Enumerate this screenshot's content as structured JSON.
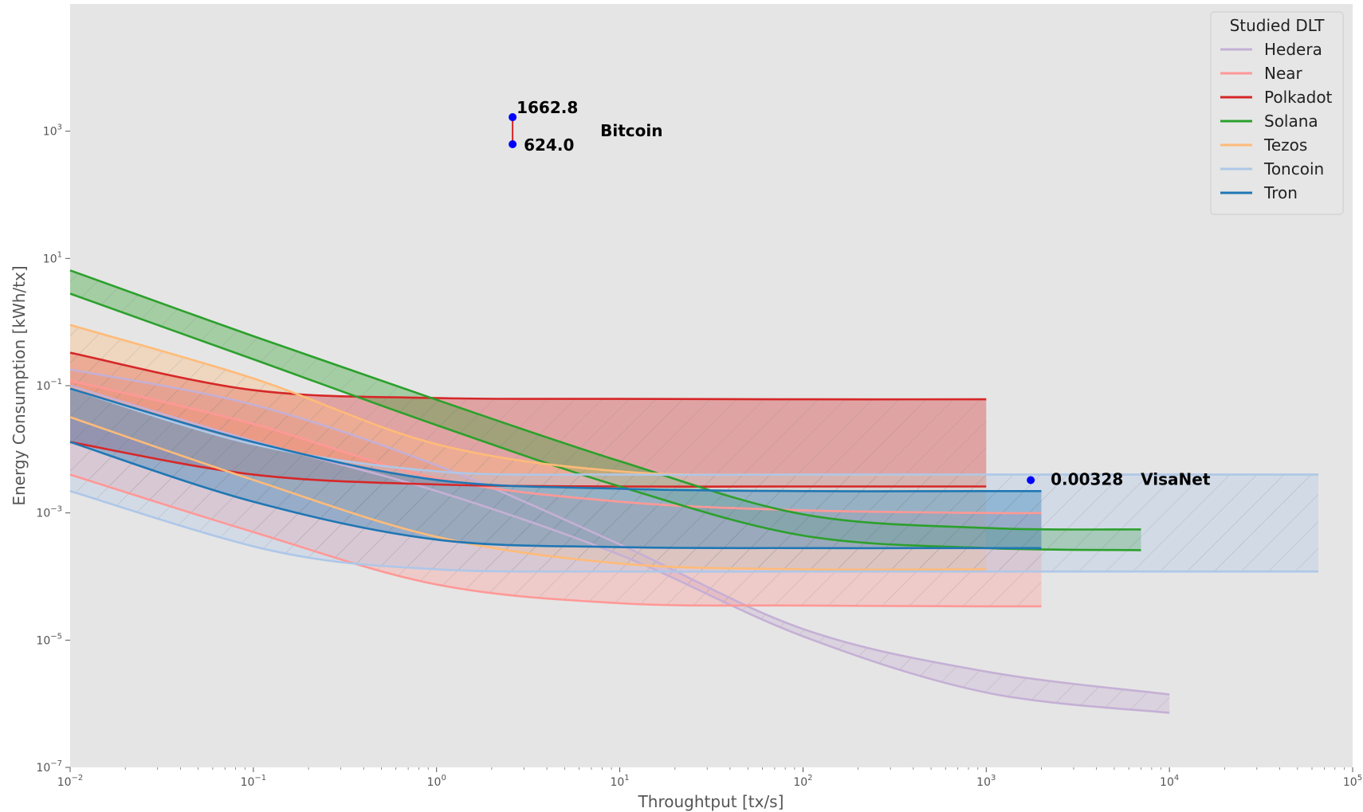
{
  "chart_data": {
    "type": "area",
    "xlabel": "Throughtput [tx/s]",
    "ylabel": "Energy Consumption [kWh/tx]",
    "xscale": "log",
    "yscale": "log",
    "xlim": [
      0.01,
      100000
    ],
    "ylim": [
      1e-07,
      100000
    ],
    "grid": false,
    "x_ticks": [
      {
        "value": 0.01,
        "base": "10",
        "exp": "−2"
      },
      {
        "value": 0.1,
        "base": "10",
        "exp": "−1"
      },
      {
        "value": 1,
        "base": "10",
        "exp": "0"
      },
      {
        "value": 10,
        "base": "10",
        "exp": "1"
      },
      {
        "value": 100,
        "base": "10",
        "exp": "2"
      },
      {
        "value": 1000,
        "base": "10",
        "exp": "3"
      },
      {
        "value": 10000,
        "base": "10",
        "exp": "4"
      },
      {
        "value": 100000,
        "base": "10",
        "exp": "5"
      }
    ],
    "y_ticks": [
      {
        "value": 1e-07,
        "base": "10",
        "exp": "−7"
      },
      {
        "value": 1e-05,
        "base": "10",
        "exp": "−5"
      },
      {
        "value": 0.001,
        "base": "10",
        "exp": "−3"
      },
      {
        "value": 0.1,
        "base": "10",
        "exp": "−1"
      },
      {
        "value": 10,
        "base": "10",
        "exp": "1"
      },
      {
        "value": 1000,
        "base": "10",
        "exp": "3"
      }
    ],
    "legend": {
      "title": "Studied DLT",
      "placement": "top-right"
    },
    "series": [
      {
        "name": "Hedera",
        "color": "#c5b0d5",
        "upper": [
          [
            0.01,
            0.18
          ],
          [
            0.1,
            0.05
          ],
          [
            1,
            0.0056
          ],
          [
            10,
            0.00032
          ],
          [
            100,
            1.5e-05
          ],
          [
            1000,
            3.2e-06
          ],
          [
            10000,
            1.4e-06
          ]
        ],
        "lower": [
          [
            0.01,
            0.1
          ],
          [
            0.1,
            0.0135
          ],
          [
            1,
            0.0022
          ],
          [
            10,
            0.00022
          ],
          [
            100,
            1.15e-05
          ],
          [
            1000,
            1.5e-06
          ],
          [
            10000,
            7.2e-07
          ]
        ]
      },
      {
        "name": "Near",
        "color": "#ff9896",
        "upper": [
          [
            0.01,
            0.12
          ],
          [
            0.1,
            0.025
          ],
          [
            1,
            0.0035
          ],
          [
            10,
            0.0015
          ],
          [
            100,
            0.0011
          ],
          [
            1000,
            0.001
          ],
          [
            2000,
            0.001
          ]
        ],
        "lower": [
          [
            0.01,
            0.004
          ],
          [
            0.1,
            0.0005
          ],
          [
            1,
            7.5e-05
          ],
          [
            10,
            3.8e-05
          ],
          [
            100,
            3.5e-05
          ],
          [
            1000,
            3.4e-05
          ],
          [
            2000,
            3.4e-05
          ]
        ]
      },
      {
        "name": "Polkadot",
        "color": "#d62728",
        "upper": [
          [
            0.01,
            0.33
          ],
          [
            0.1,
            0.085
          ],
          [
            1,
            0.064
          ],
          [
            10,
            0.062
          ],
          [
            100,
            0.061
          ],
          [
            1000,
            0.061
          ]
        ],
        "lower": [
          [
            0.01,
            0.013
          ],
          [
            0.1,
            0.004
          ],
          [
            1,
            0.0028
          ],
          [
            10,
            0.0026
          ],
          [
            100,
            0.0026
          ],
          [
            1000,
            0.0026
          ]
        ]
      },
      {
        "name": "Solana",
        "color": "#2ca02c",
        "upper": [
          [
            0.01,
            6.5
          ],
          [
            0.1,
            0.6
          ],
          [
            1,
            0.06
          ],
          [
            10,
            0.0065
          ],
          [
            100,
            0.00095
          ],
          [
            1000,
            0.00058
          ],
          [
            7000,
            0.00055
          ]
        ],
        "lower": [
          [
            0.01,
            2.8
          ],
          [
            0.1,
            0.26
          ],
          [
            1,
            0.024
          ],
          [
            10,
            0.0026
          ],
          [
            100,
            0.00044
          ],
          [
            1000,
            0.00028
          ],
          [
            7000,
            0.00026
          ]
        ]
      },
      {
        "name": "Tezos",
        "color": "#ffbb78",
        "upper": [
          [
            0.01,
            0.9
          ],
          [
            0.1,
            0.13
          ],
          [
            1,
            0.012
          ],
          [
            10,
            0.0045
          ],
          [
            100,
            0.004
          ],
          [
            1000,
            0.004
          ]
        ],
        "lower": [
          [
            0.01,
            0.032
          ],
          [
            0.1,
            0.0033
          ],
          [
            1,
            0.00042
          ],
          [
            10,
            0.00016
          ],
          [
            100,
            0.00013
          ],
          [
            1000,
            0.00013
          ]
        ]
      },
      {
        "name": "Toncoin",
        "color": "#aec7e8",
        "upper": [
          [
            0.01,
            0.09
          ],
          [
            0.1,
            0.012
          ],
          [
            1,
            0.0045
          ],
          [
            10,
            0.004
          ],
          [
            100,
            0.004
          ],
          [
            1000,
            0.004
          ],
          [
            10000,
            0.004
          ],
          [
            65000,
            0.004
          ]
        ],
        "lower": [
          [
            0.01,
            0.0022
          ],
          [
            0.13,
            0.00025
          ],
          [
            1,
            0.00013
          ],
          [
            10,
            0.00012
          ],
          [
            100,
            0.00012
          ],
          [
            1000,
            0.00012
          ],
          [
            10000,
            0.00012
          ],
          [
            65000,
            0.00012
          ]
        ]
      },
      {
        "name": "Tron",
        "color": "#1f77b4",
        "upper": [
          [
            0.01,
            0.09
          ],
          [
            0.1,
            0.013
          ],
          [
            1,
            0.0033
          ],
          [
            10,
            0.0024
          ],
          [
            100,
            0.0022
          ],
          [
            1000,
            0.0022
          ],
          [
            2000,
            0.0022
          ]
        ],
        "lower": [
          [
            0.01,
            0.013
          ],
          [
            0.1,
            0.0015
          ],
          [
            1,
            0.00038
          ],
          [
            10,
            0.00029
          ],
          [
            100,
            0.00028
          ],
          [
            1000,
            0.00028
          ],
          [
            2000,
            0.00028
          ]
        ]
      }
    ],
    "annotations": [
      {
        "name": "Bitcoin",
        "label": "Bitcoin",
        "x": 2.6,
        "upper": 1662.8,
        "lower": 624.0,
        "upper_label": "1662.8",
        "lower_label": "624.0"
      },
      {
        "name": "VisaNet",
        "label": "VisaNet",
        "x": 1750,
        "y": 0.00328,
        "value_label": "0.00328"
      }
    ],
    "colors": {
      "plot_background": "#e5e5e5",
      "marker": "#0000ff",
      "bitcoin_range_line": "#d62728"
    }
  }
}
